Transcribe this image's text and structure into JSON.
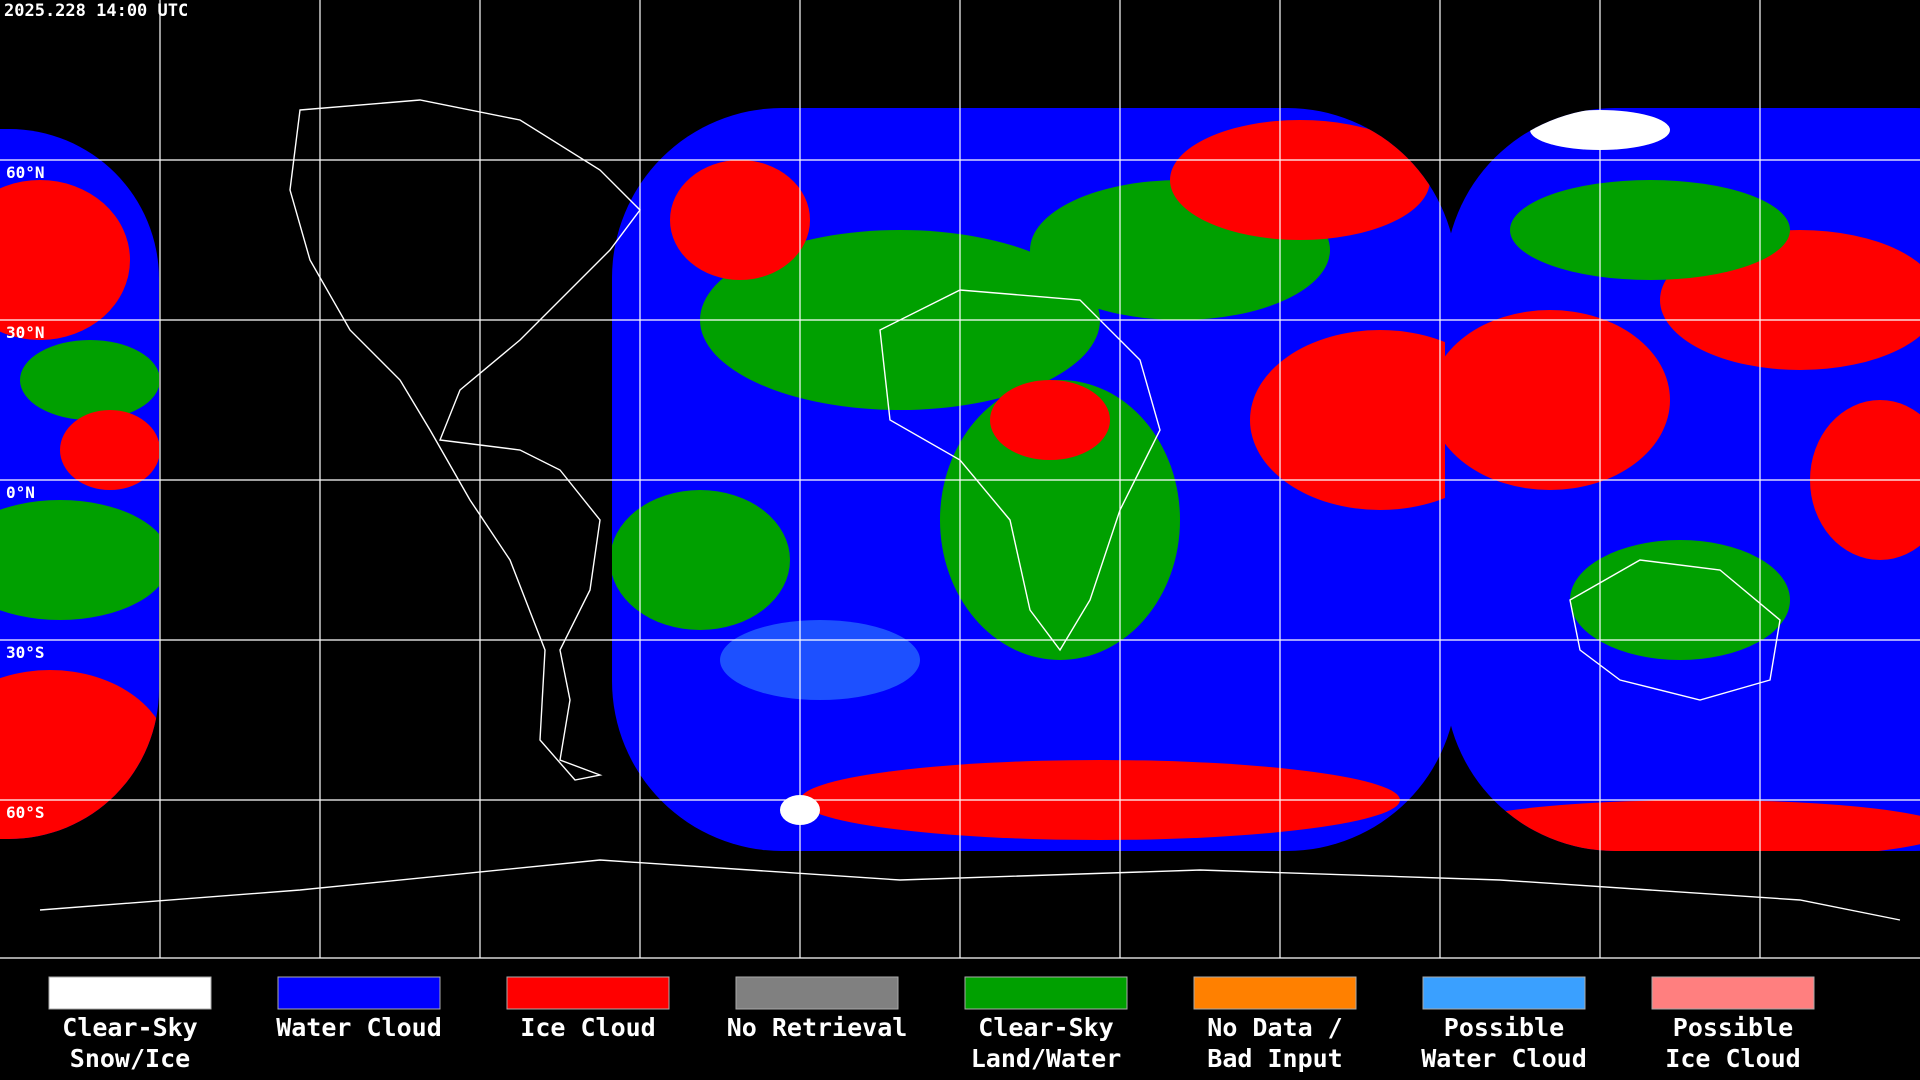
{
  "header": {
    "timestamp": "2025.228 14:00 UTC"
  },
  "map": {
    "latitude_labels": [
      "60°N",
      "30°N",
      "0°N",
      "30°S",
      "60°S"
    ]
  },
  "legend": {
    "items": [
      {
        "lines": [
          "Clear-Sky",
          "Snow/Ice"
        ],
        "color": "#ffffff"
      },
      {
        "lines": [
          "Water Cloud"
        ],
        "color": "#0000ff"
      },
      {
        "lines": [
          "Ice Cloud"
        ],
        "color": "#ff0000"
      },
      {
        "lines": [
          "No Retrieval"
        ],
        "color": "#808080"
      },
      {
        "lines": [
          "Clear-Sky",
          "Land/Water"
        ],
        "color": "#00a000"
      },
      {
        "lines": [
          "No Data /",
          "Bad Input"
        ],
        "color": "#ff8000"
      },
      {
        "lines": [
          "Possible",
          "Water Cloud"
        ],
        "color": "#3aa0ff"
      },
      {
        "lines": [
          "Possible",
          "Ice Cloud"
        ],
        "color": "#ff7f7f"
      }
    ]
  }
}
